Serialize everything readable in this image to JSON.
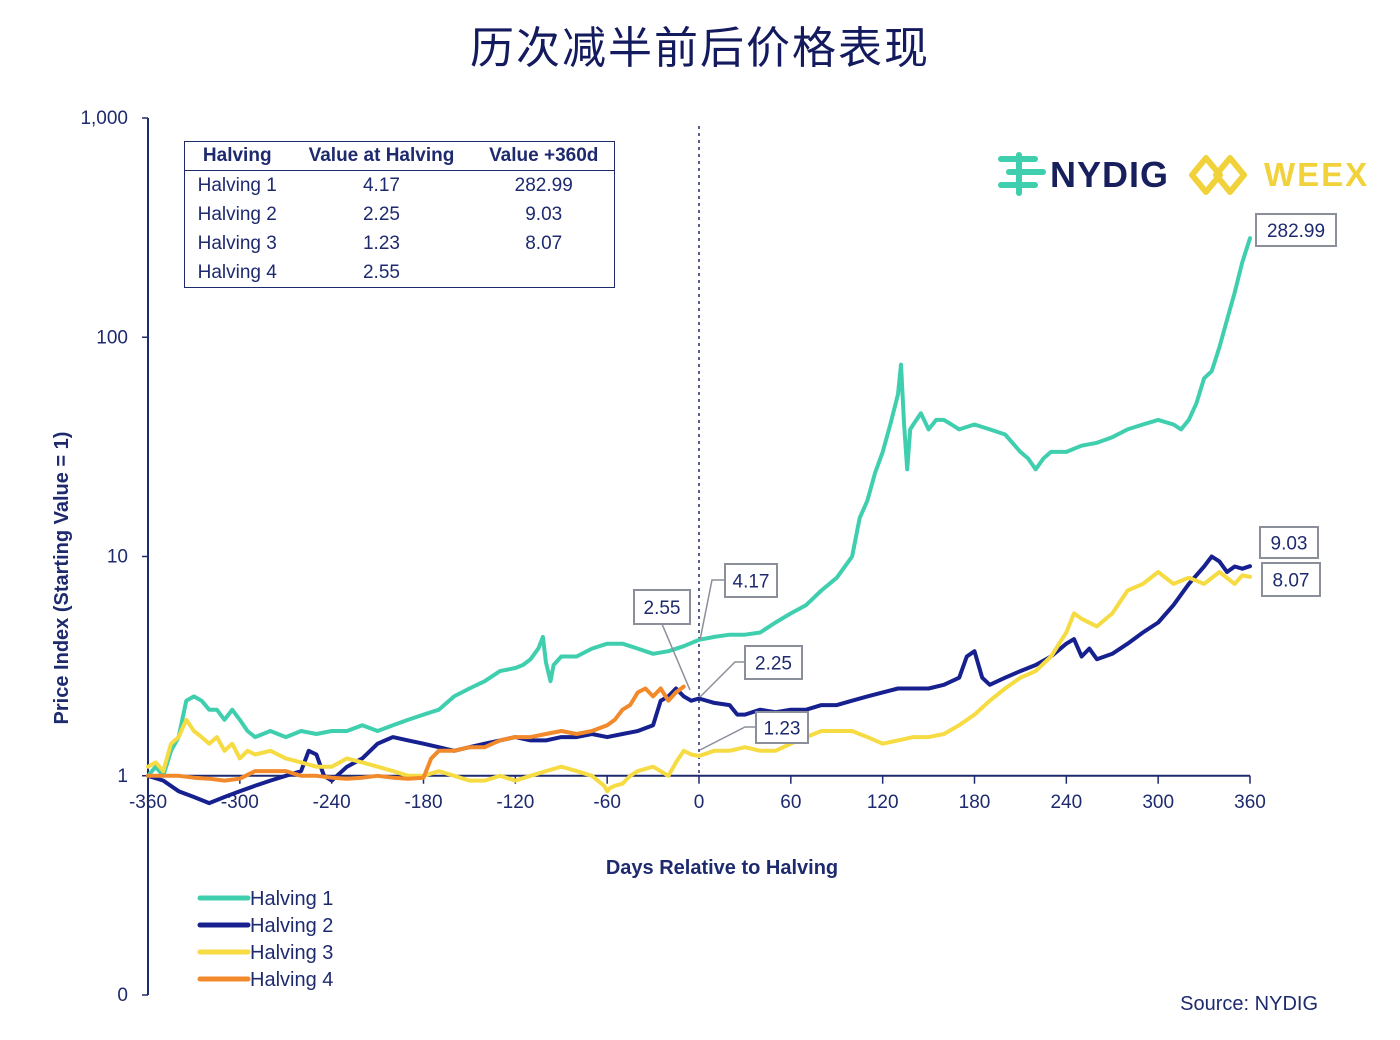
{
  "title": "历次减半前后价格表现",
  "brand": {
    "nydig": "NYDIG",
    "weex": "WEEX"
  },
  "source": "Source: NYDIG",
  "table": {
    "headers": [
      "Halving",
      "Value at Halving",
      "Value +360d"
    ],
    "rows": [
      [
        "Halving 1",
        "4.17",
        "282.99"
      ],
      [
        "Halving 2",
        "2.25",
        "9.03"
      ],
      [
        "Halving 3",
        "1.23",
        "8.07"
      ],
      [
        "Halving 4",
        "2.55",
        ""
      ]
    ]
  },
  "chart_data": {
    "type": "line",
    "xlabel": "Days Relative to Halving",
    "ylabel": "Price Index  (Starting Value = 1)",
    "xscale": "linear",
    "yscale": "log",
    "xlim": [
      -360,
      360
    ],
    "ylim": [
      0.1,
      1000
    ],
    "xticks": [
      -360,
      -300,
      -240,
      -180,
      -120,
      -60,
      0,
      60,
      120,
      180,
      240,
      300,
      360
    ],
    "xtick_labels": [
      "-360",
      "-300",
      "-240",
      "-180",
      "-120",
      "-60",
      "0",
      "60",
      "120",
      "180",
      "240",
      "300",
      "360"
    ],
    "yticks": [
      0.1,
      1,
      10,
      100,
      1000
    ],
    "ytick_labels": [
      "0",
      "1",
      "10",
      "100",
      "1,000"
    ],
    "vline_x": 0,
    "legend_position": "bottom-left",
    "grid": false,
    "series": [
      {
        "name": "Halving 1",
        "color": "#3fcfae",
        "x": [
          -360,
          -355,
          -350,
          -345,
          -340,
          -335,
          -330,
          -325,
          -320,
          -315,
          -310,
          -305,
          -300,
          -295,
          -290,
          -280,
          -270,
          -260,
          -250,
          -240,
          -230,
          -220,
          -210,
          -200,
          -190,
          -180,
          -170,
          -160,
          -150,
          -140,
          -130,
          -120,
          -115,
          -110,
          -105,
          -102,
          -100,
          -97,
          -95,
          -90,
          -80,
          -70,
          -60,
          -50,
          -40,
          -30,
          -20,
          -10,
          0,
          10,
          20,
          30,
          40,
          50,
          60,
          70,
          80,
          90,
          100,
          105,
          110,
          115,
          120,
          125,
          130,
          132,
          134,
          136,
          138,
          140,
          145,
          150,
          155,
          160,
          165,
          170,
          180,
          190,
          200,
          210,
          215,
          220,
          225,
          230,
          240,
          250,
          260,
          270,
          280,
          290,
          300,
          310,
          315,
          320,
          325,
          330,
          335,
          340,
          345,
          350,
          355,
          360
        ],
        "values": [
          1,
          1.1,
          1.0,
          1.3,
          1.5,
          2.2,
          2.3,
          2.2,
          2.0,
          2.0,
          1.8,
          2.0,
          1.8,
          1.6,
          1.5,
          1.6,
          1.5,
          1.6,
          1.55,
          1.6,
          1.6,
          1.7,
          1.6,
          1.7,
          1.8,
          1.9,
          2.0,
          2.3,
          2.5,
          2.7,
          3.0,
          3.1,
          3.2,
          3.4,
          3.8,
          4.3,
          3.3,
          2.7,
          3.2,
          3.5,
          3.5,
          3.8,
          4.0,
          4.0,
          3.8,
          3.6,
          3.7,
          3.9,
          4.17,
          4.3,
          4.4,
          4.4,
          4.5,
          5.0,
          5.5,
          6.0,
          7.0,
          8.0,
          10,
          15,
          18,
          24,
          30,
          40,
          55,
          75,
          40,
          25,
          38,
          40,
          45,
          38,
          42,
          42,
          40,
          38,
          40,
          38,
          36,
          30,
          28,
          25,
          28,
          30,
          30,
          32,
          33,
          35,
          38,
          40,
          42,
          40,
          38,
          42,
          50,
          65,
          70,
          90,
          120,
          160,
          220,
          282.99
        ]
      },
      {
        "name": "Halving 2",
        "color": "#17208f",
        "x": [
          -360,
          -350,
          -340,
          -330,
          -320,
          -310,
          -300,
          -290,
          -280,
          -270,
          -260,
          -255,
          -250,
          -245,
          -240,
          -230,
          -220,
          -210,
          -200,
          -190,
          -180,
          -170,
          -160,
          -150,
          -140,
          -130,
          -120,
          -110,
          -100,
          -90,
          -80,
          -70,
          -60,
          -50,
          -40,
          -30,
          -25,
          -20,
          -15,
          -10,
          -5,
          0,
          10,
          20,
          25,
          30,
          40,
          50,
          60,
          70,
          80,
          90,
          100,
          110,
          120,
          130,
          140,
          150,
          160,
          170,
          175,
          180,
          185,
          190,
          200,
          210,
          220,
          230,
          240,
          245,
          250,
          255,
          260,
          270,
          280,
          290,
          300,
          310,
          320,
          330,
          335,
          340,
          345,
          350,
          355,
          360
        ],
        "values": [
          1,
          0.95,
          0.85,
          0.8,
          0.75,
          0.8,
          0.85,
          0.9,
          0.95,
          1.0,
          1.05,
          1.3,
          1.25,
          1.0,
          0.95,
          1.1,
          1.2,
          1.4,
          1.5,
          1.45,
          1.4,
          1.35,
          1.3,
          1.35,
          1.4,
          1.45,
          1.5,
          1.45,
          1.45,
          1.5,
          1.5,
          1.55,
          1.5,
          1.55,
          1.6,
          1.7,
          2.2,
          2.3,
          2.5,
          2.3,
          2.2,
          2.25,
          2.15,
          2.1,
          1.9,
          1.9,
          2.0,
          1.95,
          2.0,
          2.0,
          2.1,
          2.1,
          2.2,
          2.3,
          2.4,
          2.5,
          2.5,
          2.5,
          2.6,
          2.8,
          3.5,
          3.7,
          2.8,
          2.6,
          2.8,
          3.0,
          3.2,
          3.5,
          4.0,
          4.2,
          3.5,
          3.8,
          3.4,
          3.6,
          4.0,
          4.5,
          5.0,
          6.0,
          7.5,
          9.0,
          10.0,
          9.5,
          8.5,
          9.0,
          8.8,
          9.03
        ]
      },
      {
        "name": "Halving 3",
        "color": "#f6db43",
        "x": [
          -360,
          -355,
          -350,
          -345,
          -340,
          -335,
          -330,
          -325,
          -320,
          -315,
          -310,
          -305,
          -300,
          -295,
          -290,
          -280,
          -270,
          -260,
          -250,
          -240,
          -230,
          -220,
          -210,
          -200,
          -190,
          -180,
          -170,
          -160,
          -150,
          -140,
          -130,
          -120,
          -110,
          -100,
          -90,
          -80,
          -70,
          -62,
          -60,
          -58,
          -55,
          -50,
          -45,
          -40,
          -30,
          -20,
          -15,
          -10,
          -5,
          0,
          10,
          20,
          30,
          40,
          50,
          60,
          70,
          80,
          90,
          100,
          110,
          120,
          130,
          140,
          150,
          160,
          170,
          180,
          190,
          200,
          210,
          220,
          230,
          240,
          245,
          250,
          260,
          270,
          280,
          290,
          300,
          310,
          320,
          330,
          340,
          350,
          355,
          360
        ],
        "values": [
          1.1,
          1.15,
          1.05,
          1.4,
          1.5,
          1.8,
          1.6,
          1.5,
          1.4,
          1.5,
          1.3,
          1.4,
          1.2,
          1.3,
          1.25,
          1.3,
          1.2,
          1.15,
          1.1,
          1.1,
          1.2,
          1.15,
          1.1,
          1.05,
          1.0,
          1.0,
          1.05,
          1.0,
          0.95,
          0.95,
          1.0,
          0.95,
          1.0,
          1.05,
          1.1,
          1.05,
          1.0,
          0.9,
          0.85,
          0.88,
          0.9,
          0.92,
          1.0,
          1.05,
          1.1,
          1.0,
          1.15,
          1.3,
          1.25,
          1.23,
          1.3,
          1.3,
          1.35,
          1.3,
          1.3,
          1.4,
          1.5,
          1.6,
          1.6,
          1.6,
          1.5,
          1.4,
          1.45,
          1.5,
          1.5,
          1.55,
          1.7,
          1.9,
          2.2,
          2.5,
          2.8,
          3.0,
          3.5,
          4.5,
          5.5,
          5.2,
          4.8,
          5.5,
          7.0,
          7.5,
          8.5,
          7.5,
          8.0,
          7.5,
          8.5,
          7.5,
          8.2,
          8.07
        ]
      },
      {
        "name": "Halving 4",
        "color": "#f28a2c",
        "x": [
          -360,
          -350,
          -340,
          -330,
          -320,
          -310,
          -300,
          -290,
          -280,
          -270,
          -260,
          -250,
          -240,
          -230,
          -220,
          -210,
          -200,
          -190,
          -180,
          -175,
          -170,
          -160,
          -150,
          -140,
          -130,
          -120,
          -110,
          -100,
          -90,
          -80,
          -70,
          -60,
          -55,
          -50,
          -45,
          -40,
          -35,
          -30,
          -25,
          -20,
          -15,
          -10
        ],
        "values": [
          1.0,
          1.0,
          1.0,
          0.98,
          0.97,
          0.95,
          0.97,
          1.05,
          1.05,
          1.05,
          1.0,
          1.0,
          0.98,
          0.97,
          0.98,
          1.0,
          0.98,
          0.97,
          0.98,
          1.2,
          1.3,
          1.3,
          1.35,
          1.35,
          1.45,
          1.5,
          1.5,
          1.55,
          1.6,
          1.55,
          1.6,
          1.7,
          1.8,
          2.0,
          2.1,
          2.4,
          2.5,
          2.3,
          2.5,
          2.2,
          2.4,
          2.55
        ]
      }
    ]
  },
  "callouts": [
    {
      "text": "282.99",
      "x": 360,
      "y": 282.99
    },
    {
      "text": "9.03",
      "x": 360,
      "y": 9.03
    },
    {
      "text": "8.07",
      "x": 360,
      "y": 8.07
    },
    {
      "text": "4.17",
      "x": 0,
      "y": 4.17
    },
    {
      "text": "2.55",
      "x": -10,
      "y": 2.55
    },
    {
      "text": "2.25",
      "x": 0,
      "y": 2.25
    },
    {
      "text": "1.23",
      "x": 0,
      "y": 1.23
    }
  ]
}
